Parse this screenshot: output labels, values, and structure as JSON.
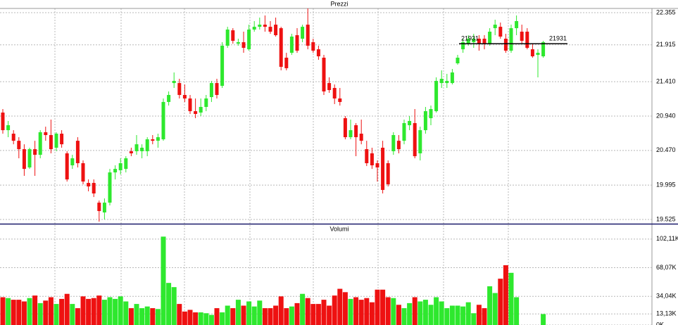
{
  "chart_data": [
    {
      "type": "candlestick",
      "title": "Prezzi",
      "up_color": "#2ee82e",
      "down_color": "#ee1111",
      "open": [
        20988,
        20747,
        20699,
        20602,
        20487,
        20237,
        20487,
        20410,
        20719,
        20680,
        20507,
        20699,
        20430,
        20266,
        20602,
        20295,
        20025,
        20025,
        19755,
        19621,
        19755,
        20169,
        20198,
        20217,
        20459,
        20459,
        20459,
        20459,
        20622,
        20602,
        20622,
        21133,
        21392,
        21392,
        21229,
        21181,
        21007,
        20988,
        21065,
        21200,
        21392,
        21354,
        21903,
        22114,
        21931,
        21951,
        21854,
        22124,
        22162,
        22191,
        22162,
        22191,
        22143,
        21739,
        21806,
        22047,
        21999,
        22191,
        21951,
        21854,
        21739,
        21392,
        21325,
        21181,
        20911,
        20651,
        20815,
        20699,
        20487,
        20430,
        20295,
        20507,
        20295,
        20459,
        20602,
        20602,
        20815,
        20844,
        20430,
        20747,
        20911,
        21007,
        21392,
        21392,
        21392,
        21662,
        21854,
        21931,
        21951,
        21999,
        21999,
        21931,
        22143,
        22162,
        21999,
        21835,
        22143,
        22095,
        22095,
        21854,
        21777,
        21758
      ],
      "high": [
        21036,
        20873,
        20747,
        20651,
        20554,
        20507,
        20602,
        20747,
        20795,
        20892,
        20719,
        20747,
        20459,
        20410,
        20651,
        20333,
        20073,
        20073,
        19784,
        19813,
        20217,
        20266,
        20362,
        20391,
        20507,
        20680,
        20554,
        20651,
        20680,
        20699,
        21181,
        21277,
        21537,
        21450,
        21373,
        21229,
        21181,
        21181,
        21229,
        21421,
        21450,
        21951,
        22162,
        22143,
        21999,
        22095,
        22191,
        22240,
        22288,
        22317,
        22240,
        22288,
        22162,
        21806,
        22066,
        22143,
        22191,
        22413,
        21999,
        21903,
        21777,
        21470,
        21373,
        21325,
        20940,
        20892,
        20844,
        20892,
        20602,
        20507,
        20333,
        20602,
        20333,
        20719,
        20680,
        20892,
        20940,
        21036,
        20795,
        21065,
        21084,
        21470,
        21566,
        21518,
        21585,
        21777,
        21999,
        22047,
        22066,
        22047,
        22047,
        22143,
        22259,
        22220,
        22066,
        22191,
        22317,
        22191,
        22143,
        21931,
        21854,
        21970
      ],
      "low": [
        20699,
        20651,
        20554,
        20362,
        20122,
        20217,
        20122,
        20362,
        20602,
        20430,
        20459,
        20507,
        20044,
        20217,
        20237,
        20006,
        19910,
        19832,
        19495,
        19525,
        19717,
        20073,
        20141,
        20169,
        20391,
        20410,
        20362,
        20391,
        20554,
        20507,
        20602,
        21084,
        21325,
        21181,
        21133,
        20969,
        20911,
        20940,
        21007,
        21133,
        21181,
        21325,
        21874,
        21931,
        21903,
        21806,
        21835,
        22095,
        22124,
        22095,
        22066,
        22028,
        21566,
        21566,
        21777,
        21806,
        21951,
        21854,
        21806,
        21710,
        21229,
        21258,
        21104,
        21084,
        20622,
        20622,
        20391,
        20554,
        20256,
        20217,
        20044,
        19881,
        19977,
        20410,
        20430,
        20554,
        20747,
        20362,
        20333,
        20699,
        20815,
        20988,
        21325,
        21325,
        21373,
        21643,
        21806,
        21903,
        21874,
        21835,
        21854,
        21903,
        22047,
        21999,
        21806,
        21806,
        22047,
        21931,
        21854,
        21739,
        21470,
        21739
      ],
      "close": [
        20747,
        20815,
        20602,
        20487,
        20217,
        20487,
        20410,
        20719,
        20680,
        20487,
        20699,
        20554,
        20073,
        20362,
        20295,
        20044,
        19977,
        19881,
        19640,
        19755,
        20169,
        20217,
        20295,
        20362,
        20430,
        20554,
        20507,
        20622,
        20602,
        20651,
        21133,
        21229,
        21421,
        21229,
        21181,
        21007,
        20969,
        21065,
        21181,
        21392,
        21229,
        21903,
        22124,
        21970,
        21951,
        21874,
        22124,
        22162,
        22191,
        22162,
        22095,
        22047,
        21614,
        21595,
        22028,
        21835,
        22162,
        21903,
        21835,
        21758,
        21277,
        21296,
        21181,
        21133,
        20651,
        20747,
        20651,
        20602,
        20295,
        20266,
        20237,
        19929,
        20006,
        20680,
        20487,
        20844,
        20873,
        20391,
        20747,
        21007,
        21036,
        21421,
        21450,
        21421,
        21537,
        21739,
        21951,
        21999,
        21999,
        21931,
        21931,
        22095,
        22191,
        22028,
        21835,
        22143,
        22240,
        21970,
        21874,
        21758,
        21806,
        21951
      ],
      "ylim": [
        19467,
        22413
      ],
      "yticks": [
        {
          "value": 22355,
          "label": "22.355"
        },
        {
          "value": 21915,
          "label": "21.915"
        },
        {
          "value": 21410,
          "label": "21.410"
        },
        {
          "value": 20940,
          "label": "20.940"
        },
        {
          "value": 20470,
          "label": "20.470"
        },
        {
          "value": 19995,
          "label": "19.995"
        },
        {
          "value": 19525,
          "label": "19.525"
        }
      ],
      "grid": true,
      "annotations": [
        {
          "value": 21931,
          "label": "21931"
        }
      ]
    },
    {
      "type": "bar",
      "title": "Volumi",
      "values": [
        33000,
        32000,
        30000,
        30000,
        28000,
        32000,
        35000,
        26000,
        29000,
        33000,
        25000,
        31000,
        37000,
        25000,
        20000,
        34000,
        31000,
        32000,
        35000,
        30000,
        33000,
        31000,
        34000,
        28000,
        20000,
        25000,
        20000,
        22000,
        20000,
        19000,
        105000,
        50000,
        45000,
        25000,
        16000,
        18000,
        15000,
        15000,
        14000,
        12000,
        20000,
        15000,
        23000,
        20000,
        30000,
        23000,
        28000,
        22000,
        29000,
        20000,
        20000,
        23000,
        34000,
        20000,
        22000,
        26000,
        37000,
        32000,
        25000,
        25000,
        30000,
        23000,
        35000,
        43000,
        39000,
        31000,
        33000,
        30000,
        32000,
        27000,
        42000,
        42000,
        33000,
        32000,
        24000,
        20000,
        26000,
        33000,
        28000,
        30000,
        24000,
        33000,
        28000,
        20000,
        23000,
        23000,
        22000,
        27000,
        14000,
        24000,
        20000,
        46000,
        38000,
        55000,
        71000,
        62000,
        33000,
        null,
        null,
        null,
        null,
        13000
      ],
      "ylim": [
        0,
        117000
      ],
      "yticks": [
        {
          "value": 102110,
          "label": "102,11K"
        },
        {
          "value": 68070,
          "label": "68,07K"
        },
        {
          "value": 34040,
          "label": "34,04K"
        },
        {
          "value": 13130,
          "label": "13,13K"
        },
        {
          "value": 0,
          "label": "0K"
        }
      ],
      "grid": true
    }
  ]
}
